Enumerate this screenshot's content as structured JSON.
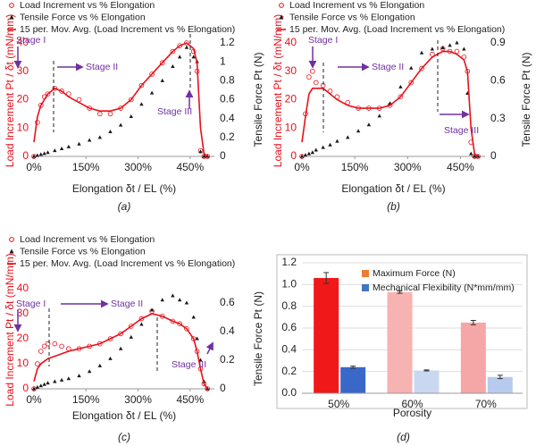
{
  "chart_data": [
    {
      "type": "line",
      "caption": "(a)",
      "x_label": "Elongation δt / EL (%)",
      "y_label": "Load Increment Pt / δt (mN/mm)",
      "y2_label": "Tensile Force Pt (N)",
      "annotations": [
        "Stage I",
        "Stage II",
        "Stage III"
      ],
      "x": [
        0,
        10,
        20,
        30,
        40,
        60,
        80,
        100,
        130,
        160,
        190,
        220,
        250,
        280,
        310,
        340,
        370,
        400,
        420,
        440,
        460,
        470,
        480,
        490,
        500
      ],
      "xlim": [
        0,
        520
      ],
      "xticks": [
        {
          "value": 0,
          "label": "0%"
        },
        {
          "value": 150,
          "label": "150%"
        },
        {
          "value": 300,
          "label": "300%"
        },
        {
          "value": 450,
          "label": "450%"
        }
      ],
      "ylim": [
        0,
        40
      ],
      "yticks": [
        0,
        10,
        20,
        30,
        40
      ],
      "y2lim": [
        0,
        1.2
      ],
      "y2ticks": [
        0,
        0.2,
        0.4,
        0.6,
        0.8,
        1,
        1.2
      ],
      "series": [
        {
          "name": "Load Increment vs % Elongation",
          "color": "#e8101a",
          "marker": "circle",
          "values": [
            0,
            12,
            18,
            21,
            22,
            24,
            23,
            22,
            20,
            17,
            15,
            15,
            17,
            20,
            25,
            29,
            33,
            37,
            39,
            40,
            37,
            30,
            2,
            0,
            0
          ]
        },
        {
          "name": "Tensile Force vs % Elongation",
          "color": "#1a1a1a",
          "marker": "triangle",
          "axis": "y2",
          "values": [
            0,
            0.01,
            0.02,
            0.03,
            0.04,
            0.06,
            0.08,
            0.1,
            0.13,
            0.17,
            0.2,
            0.26,
            0.33,
            0.42,
            0.55,
            0.67,
            0.8,
            0.95,
            1.05,
            1.15,
            1.05,
            1,
            0.05,
            0,
            0
          ]
        },
        {
          "name": "15 per. Mov. Avg. (Load Increment vs % Elongation)",
          "color": "#e8101a",
          "marker": "none",
          "values": [
            5,
            14,
            18,
            20,
            22,
            24,
            23,
            21,
            19,
            17,
            16,
            16,
            17,
            20,
            25,
            29,
            33,
            37,
            39,
            40,
            38,
            33,
            10,
            1,
            0
          ]
        }
      ]
    },
    {
      "type": "line",
      "caption": "(b)",
      "x_label": "Elongation δt / EL (%)",
      "y_label": "Load Increment Pt / δt (mN/mm)",
      "y2_label": "Tensile Force Pt (N)",
      "annotations": [
        "Stage I",
        "Stage II",
        "Stage III"
      ],
      "x": [
        0,
        10,
        20,
        30,
        40,
        60,
        80,
        100,
        130,
        160,
        190,
        220,
        250,
        280,
        310,
        340,
        370,
        400,
        420,
        440,
        460,
        470,
        480,
        490,
        500
      ],
      "xlim": [
        0,
        520
      ],
      "xticks": [
        {
          "value": 0,
          "label": "0%"
        },
        {
          "value": 150,
          "label": "150%"
        },
        {
          "value": 300,
          "label": "300%"
        },
        {
          "value": 450,
          "label": "450%"
        }
      ],
      "ylim": [
        0,
        40
      ],
      "yticks": [
        0,
        10,
        20,
        30,
        40
      ],
      "y2lim": [
        0,
        0.9
      ],
      "y2ticks": [
        0,
        0.3,
        0.6,
        0.9
      ],
      "series": [
        {
          "name": "Load Increment vs % Elongation",
          "color": "#e8101a",
          "marker": "circle",
          "values": [
            0,
            15,
            28,
            30,
            26,
            25,
            23,
            21,
            19,
            17,
            17,
            17,
            18,
            21,
            26,
            31,
            36,
            38,
            37,
            37,
            35,
            30,
            5,
            0,
            0
          ]
        },
        {
          "name": "Tensile Force vs % Elongation",
          "color": "#1a1a1a",
          "marker": "triangle",
          "axis": "y2",
          "values": [
            0,
            0.01,
            0.02,
            0.03,
            0.05,
            0.07,
            0.09,
            0.12,
            0.15,
            0.2,
            0.25,
            0.32,
            0.42,
            0.55,
            0.7,
            0.82,
            0.85,
            0.86,
            0.88,
            0.9,
            0.85,
            0.5,
            0.02,
            0,
            0
          ]
        },
        {
          "name": "15 per. Mov. Avg. (Load Increment vs % Elongation)",
          "color": "#e8101a",
          "marker": "none",
          "values": [
            5,
            14,
            22,
            24,
            24,
            24,
            22,
            20,
            18,
            17,
            17,
            17,
            18,
            21,
            26,
            31,
            35,
            37,
            37,
            36,
            34,
            30,
            10,
            1,
            0
          ]
        }
      ]
    },
    {
      "type": "line",
      "caption": "(c)",
      "x_label": "Elongation δt / EL (%)",
      "y_label": "Load Increment Pt / δt (mN/mm)",
      "y2_label": "Tensile Force Pt (N)",
      "annotations": [
        "Stage I",
        "Stage II",
        "Stage III"
      ],
      "x": [
        0,
        10,
        20,
        30,
        40,
        60,
        80,
        100,
        130,
        160,
        190,
        220,
        250,
        280,
        310,
        340,
        370,
        400,
        420,
        440,
        460,
        470,
        480,
        490,
        500
      ],
      "xlim": [
        0,
        520
      ],
      "xticks": [
        {
          "value": 0,
          "label": "0%"
        },
        {
          "value": 150,
          "label": "150%"
        },
        {
          "value": 300,
          "label": "300%"
        },
        {
          "value": 450,
          "label": "450%"
        }
      ],
      "ylim": [
        0,
        40
      ],
      "yticks": [
        0,
        10,
        20,
        30,
        40
      ],
      "y2lim": [
        0,
        0.7
      ],
      "y2ticks": [
        0,
        0.2,
        0.4,
        0.6
      ],
      "series": [
        {
          "name": "Load Increment vs % Elongation",
          "color": "#e8101a",
          "marker": "circle",
          "values": [
            0,
            10,
            15,
            17,
            18,
            18,
            17,
            16,
            16,
            17,
            18,
            20,
            22,
            25,
            28,
            31,
            29,
            27,
            26,
            24,
            20,
            15,
            8,
            2,
            0
          ]
        },
        {
          "name": "Tensile Force vs % Elongation",
          "color": "#1a1a1a",
          "marker": "triangle",
          "axis": "y2",
          "values": [
            0,
            0.01,
            0.02,
            0.03,
            0.04,
            0.05,
            0.06,
            0.07,
            0.09,
            0.12,
            0.16,
            0.21,
            0.28,
            0.36,
            0.45,
            0.55,
            0.62,
            0.65,
            0.62,
            0.6,
            0.5,
            0.35,
            0.2,
            0.05,
            0
          ]
        },
        {
          "name": "15 per. Mov. Avg. (Load Increment vs % Elongation)",
          "color": "#e8101a",
          "marker": "none",
          "values": [
            3,
            8,
            10,
            11,
            12,
            13,
            14,
            15,
            16,
            17,
            18,
            20,
            22,
            25,
            28,
            30,
            29,
            27,
            26,
            24,
            20,
            15,
            8,
            2,
            0
          ]
        }
      ]
    },
    {
      "type": "bar",
      "caption": "(d)",
      "x_label": "Porosity",
      "categories": [
        "50%",
        "60%",
        "70%"
      ],
      "ylim": [
        0,
        1.2
      ],
      "yticks": [
        {
          "value": 0,
          "label": "0.0"
        },
        {
          "value": 0.2,
          "label": "0.2"
        },
        {
          "value": 0.4,
          "label": "0.4"
        },
        {
          "value": 0.6,
          "label": "0.6"
        },
        {
          "value": 0.8,
          "label": "0.8"
        },
        {
          "value": 1,
          "label": "1.0"
        },
        {
          "value": 1.2,
          "label": "1.2"
        }
      ],
      "grid": true,
      "series": [
        {
          "name": "Maximum Force (N)",
          "color": "#ed7d31",
          "colors": [
            "#f01818",
            "#f7b2b2",
            "#f5a6a6"
          ],
          "values": [
            1.06,
            0.93,
            0.65
          ],
          "errors": [
            0.05,
            0.01,
            0.02
          ]
        },
        {
          "name": "Mechanical Flexibility (N*mm/mm)",
          "color": "#4472c4",
          "colors": [
            "#3a68c8",
            "#c9d8f0",
            "#b8cbee"
          ],
          "values": [
            0.24,
            0.21,
            0.15
          ],
          "errors": [
            0.01,
            0.005,
            0.015
          ]
        }
      ]
    }
  ]
}
